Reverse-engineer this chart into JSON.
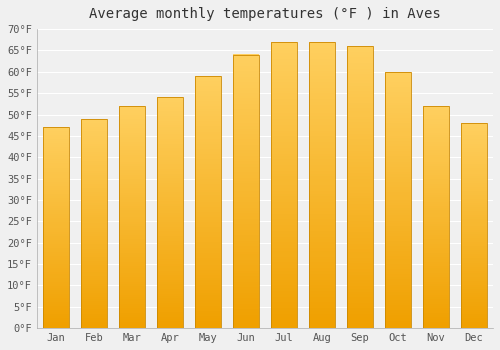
{
  "title": "Average monthly temperatures (°F ) in Aves",
  "months": [
    "Jan",
    "Feb",
    "Mar",
    "Apr",
    "May",
    "Jun",
    "Jul",
    "Aug",
    "Sep",
    "Oct",
    "Nov",
    "Dec"
  ],
  "values": [
    47,
    49,
    52,
    54,
    59,
    64,
    67,
    67,
    66,
    60,
    52,
    48
  ],
  "ylim": [
    0,
    70
  ],
  "yticks": [
    0,
    5,
    10,
    15,
    20,
    25,
    30,
    35,
    40,
    45,
    50,
    55,
    60,
    65,
    70
  ],
  "ytick_labels": [
    "0°F",
    "5°F",
    "10°F",
    "15°F",
    "20°F",
    "25°F",
    "30°F",
    "35°F",
    "40°F",
    "45°F",
    "50°F",
    "55°F",
    "60°F",
    "65°F",
    "70°F"
  ],
  "background_color": "#f0f0f0",
  "grid_color": "#ffffff",
  "bar_color_bottom": "#F0A000",
  "bar_color_top": "#FFD060",
  "bar_edge_color": "#CC8800",
  "title_fontsize": 10,
  "tick_fontsize": 7.5,
  "bar_width": 0.7
}
